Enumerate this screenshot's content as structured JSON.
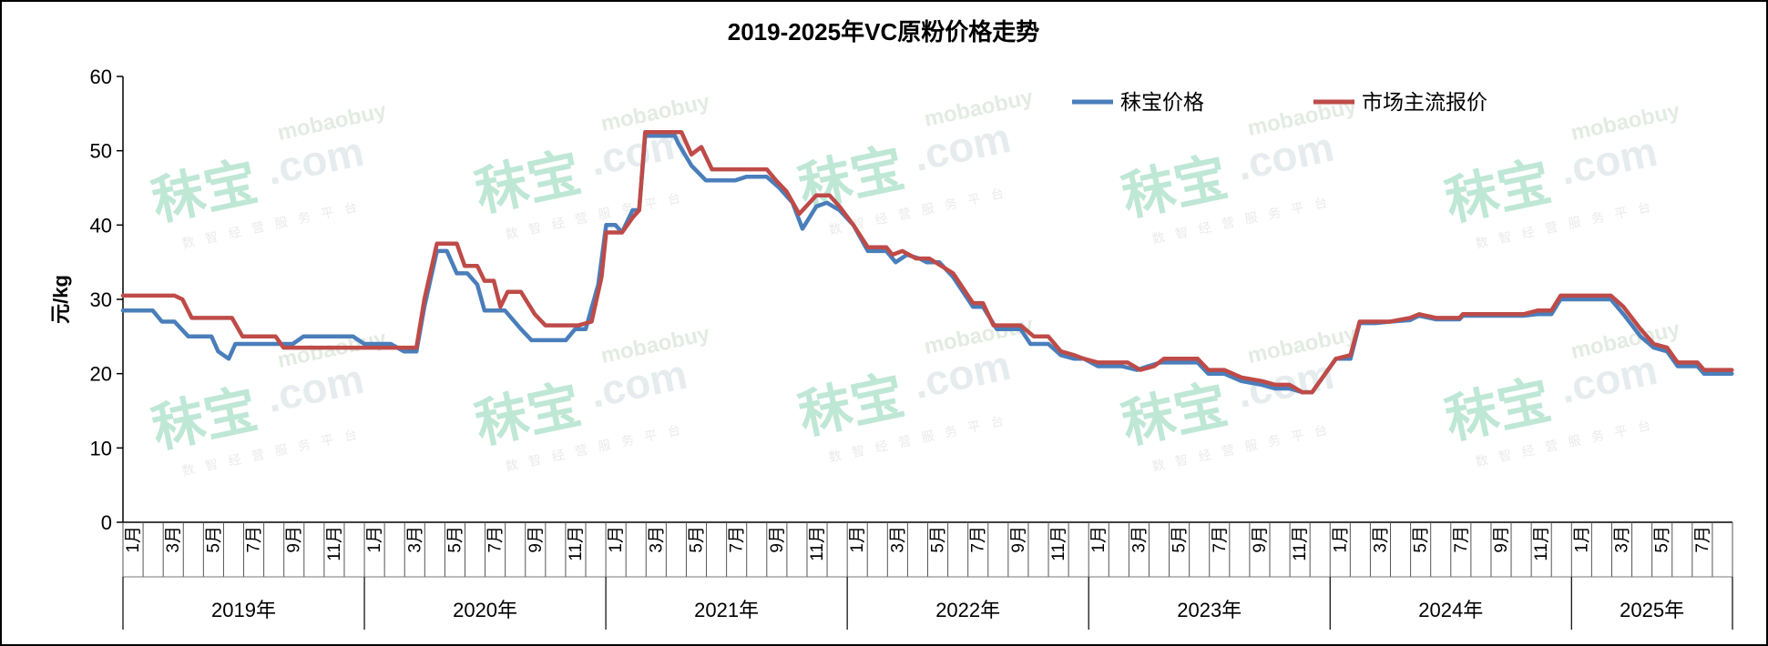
{
  "chart_data": {
    "type": "line",
    "title": "2019-2025年VC原粉价格走势",
    "ylabel": "元/kg",
    "xlabel": "",
    "ylim": [
      0,
      60
    ],
    "yticks": [
      "0",
      "10",
      "20",
      "30",
      "40",
      "50",
      "60"
    ],
    "grid": false,
    "legend_position": "top-right",
    "x_month_labels": [
      "1月",
      "3月",
      "5月",
      "7月",
      "9月",
      "11月"
    ],
    "years": [
      "2019年",
      "2020年",
      "2021年",
      "2022年",
      "2023年",
      "2024年",
      "2025年"
    ],
    "x_start": "2019-01",
    "x_end": "2025-08",
    "series": [
      {
        "name": "秣宝价格",
        "color": "#4a7ebb",
        "points": [
          [
            "2019-01-01",
            28.5
          ],
          [
            "2019-02-15",
            28.5
          ],
          [
            "2019-03-01",
            27
          ],
          [
            "2019-03-20",
            27
          ],
          [
            "2019-04-10",
            25
          ],
          [
            "2019-05-15",
            25
          ],
          [
            "2019-05-25",
            23
          ],
          [
            "2019-06-10",
            22
          ],
          [
            "2019-06-20",
            24
          ],
          [
            "2019-08-20",
            24
          ],
          [
            "2019-09-15",
            24
          ],
          [
            "2019-10-01",
            25
          ],
          [
            "2019-12-15",
            25
          ],
          [
            "2020-01-01",
            24
          ],
          [
            "2020-02-10",
            24
          ],
          [
            "2020-03-01",
            23
          ],
          [
            "2020-03-20",
            23
          ],
          [
            "2020-04-01",
            29
          ],
          [
            "2020-04-20",
            36.5
          ],
          [
            "2020-05-05",
            36.5
          ],
          [
            "2020-05-20",
            33.5
          ],
          [
            "2020-06-05",
            33.5
          ],
          [
            "2020-06-20",
            32
          ],
          [
            "2020-07-01",
            28.5
          ],
          [
            "2020-08-01",
            28.5
          ],
          [
            "2020-08-25",
            26
          ],
          [
            "2020-09-10",
            24.5
          ],
          [
            "2020-11-01",
            24.5
          ],
          [
            "2020-11-15",
            26
          ],
          [
            "2020-12-01",
            26
          ],
          [
            "2020-12-20",
            32
          ],
          [
            "2021-01-01",
            40
          ],
          [
            "2021-01-15",
            40
          ],
          [
            "2021-01-25",
            39
          ],
          [
            "2021-02-10",
            42
          ],
          [
            "2021-02-20",
            42
          ],
          [
            "2021-03-01",
            52
          ],
          [
            "2021-04-15",
            52
          ],
          [
            "2021-04-20",
            51
          ],
          [
            "2021-05-10",
            48
          ],
          [
            "2021-06-01",
            46
          ],
          [
            "2021-07-15",
            46
          ],
          [
            "2021-08-01",
            46.5
          ],
          [
            "2021-09-01",
            46.5
          ],
          [
            "2021-09-20",
            45
          ],
          [
            "2021-10-10",
            43
          ],
          [
            "2021-10-25",
            39.5
          ],
          [
            "2021-11-15",
            42.5
          ],
          [
            "2021-12-01",
            43
          ],
          [
            "2021-12-20",
            42
          ],
          [
            "2022-01-10",
            40
          ],
          [
            "2022-02-01",
            36.5
          ],
          [
            "2022-03-01",
            36.5
          ],
          [
            "2022-03-15",
            35
          ],
          [
            "2022-04-01",
            36
          ],
          [
            "2022-04-20",
            35.5
          ],
          [
            "2022-05-01",
            35
          ],
          [
            "2022-05-20",
            35
          ],
          [
            "2022-06-10",
            33
          ],
          [
            "2022-07-10",
            29
          ],
          [
            "2022-07-25",
            29
          ],
          [
            "2022-08-15",
            26
          ],
          [
            "2022-09-20",
            26
          ],
          [
            "2022-10-05",
            24
          ],
          [
            "2022-11-01",
            24
          ],
          [
            "2022-11-20",
            22.5
          ],
          [
            "2022-12-10",
            22
          ],
          [
            "2022-12-25",
            22
          ],
          [
            "2023-01-15",
            21
          ],
          [
            "2023-02-20",
            21
          ],
          [
            "2023-03-15",
            20.5
          ],
          [
            "2023-04-01",
            21
          ],
          [
            "2023-04-20",
            21.5
          ],
          [
            "2023-06-15",
            21.5
          ],
          [
            "2023-07-01",
            20
          ],
          [
            "2023-07-25",
            20
          ],
          [
            "2023-08-20",
            19
          ],
          [
            "2023-09-20",
            18.5
          ],
          [
            "2023-10-10",
            18
          ],
          [
            "2023-11-01",
            18
          ],
          [
            "2023-11-20",
            17.5
          ],
          [
            "2023-12-05",
            17.5
          ],
          [
            "2023-12-25",
            20
          ],
          [
            "2024-01-10",
            22
          ],
          [
            "2024-02-01",
            22
          ],
          [
            "2024-02-15",
            26.8
          ],
          [
            "2024-03-10",
            26.8
          ],
          [
            "2024-04-01",
            27
          ],
          [
            "2024-05-01",
            27.2
          ],
          [
            "2024-05-15",
            27.8
          ],
          [
            "2024-06-10",
            27.3
          ],
          [
            "2024-07-15",
            27.3
          ],
          [
            "2024-07-20",
            27.8
          ],
          [
            "2024-10-20",
            27.8
          ],
          [
            "2024-11-10",
            28
          ],
          [
            "2024-12-01",
            28
          ],
          [
            "2024-12-15",
            30
          ],
          [
            "2025-03-01",
            30
          ],
          [
            "2025-03-20",
            28
          ],
          [
            "2025-04-15",
            25
          ],
          [
            "2025-05-05",
            23.5
          ],
          [
            "2025-05-25",
            23
          ],
          [
            "2025-06-10",
            21
          ],
          [
            "2025-07-10",
            21
          ],
          [
            "2025-07-20",
            20
          ],
          [
            "2025-08-31",
            20
          ]
        ]
      },
      {
        "name": "市场主流报价",
        "color": "#be4b48",
        "points": [
          [
            "2019-01-01",
            30.5
          ],
          [
            "2019-03-20",
            30.5
          ],
          [
            "2019-04-01",
            30
          ],
          [
            "2019-04-15",
            27.5
          ],
          [
            "2019-06-15",
            27.5
          ],
          [
            "2019-07-01",
            25
          ],
          [
            "2019-08-20",
            25
          ],
          [
            "2019-09-01",
            23.5
          ],
          [
            "2020-03-20",
            23.5
          ],
          [
            "2020-04-01",
            30
          ],
          [
            "2020-04-20",
            37.5
          ],
          [
            "2020-05-20",
            37.5
          ],
          [
            "2020-06-01",
            34.5
          ],
          [
            "2020-06-20",
            34.5
          ],
          [
            "2020-07-01",
            32.5
          ],
          [
            "2020-07-15",
            32.5
          ],
          [
            "2020-07-25",
            29
          ],
          [
            "2020-08-05",
            31
          ],
          [
            "2020-08-25",
            31
          ],
          [
            "2020-09-15",
            28
          ],
          [
            "2020-10-01",
            26.5
          ],
          [
            "2020-11-20",
            26.5
          ],
          [
            "2020-12-10",
            27
          ],
          [
            "2020-12-25",
            33
          ],
          [
            "2021-01-01",
            39
          ],
          [
            "2021-01-25",
            39
          ],
          [
            "2021-02-10",
            41
          ],
          [
            "2021-02-20",
            42
          ],
          [
            "2021-03-01",
            52.5
          ],
          [
            "2021-04-25",
            52.5
          ],
          [
            "2021-05-10",
            49.5
          ],
          [
            "2021-05-25",
            50.5
          ],
          [
            "2021-06-10",
            47.5
          ],
          [
            "2021-09-01",
            47.5
          ],
          [
            "2021-09-15",
            46
          ],
          [
            "2021-10-01",
            44.5
          ],
          [
            "2021-10-20",
            41.5
          ],
          [
            "2021-11-15",
            44
          ],
          [
            "2021-12-05",
            44
          ],
          [
            "2021-12-20",
            42.5
          ],
          [
            "2022-01-10",
            40
          ],
          [
            "2022-02-01",
            37
          ],
          [
            "2022-03-01",
            37
          ],
          [
            "2022-03-10",
            36
          ],
          [
            "2022-03-25",
            36.5
          ],
          [
            "2022-04-15",
            35.5
          ],
          [
            "2022-05-05",
            35.5
          ],
          [
            "2022-06-10",
            33.5
          ],
          [
            "2022-07-10",
            29.5
          ],
          [
            "2022-07-25",
            29.5
          ],
          [
            "2022-08-10",
            26.5
          ],
          [
            "2022-09-20",
            26.5
          ],
          [
            "2022-10-10",
            25
          ],
          [
            "2022-11-01",
            25
          ],
          [
            "2022-11-20",
            23
          ],
          [
            "2022-12-10",
            22.5
          ],
          [
            "2022-12-25",
            22
          ],
          [
            "2023-01-15",
            21.5
          ],
          [
            "2023-03-01",
            21.5
          ],
          [
            "2023-03-20",
            20.5
          ],
          [
            "2023-04-10",
            21
          ],
          [
            "2023-04-25",
            22
          ],
          [
            "2023-06-15",
            22
          ],
          [
            "2023-07-01",
            20.5
          ],
          [
            "2023-07-25",
            20.5
          ],
          [
            "2023-08-20",
            19.5
          ],
          [
            "2023-09-20",
            19
          ],
          [
            "2023-10-10",
            18.5
          ],
          [
            "2023-11-01",
            18.5
          ],
          [
            "2023-11-20",
            17.5
          ],
          [
            "2023-12-05",
            17.5
          ],
          [
            "2023-12-25",
            20
          ],
          [
            "2024-01-10",
            22
          ],
          [
            "2024-02-01",
            22.5
          ],
          [
            "2024-02-15",
            27
          ],
          [
            "2024-03-10",
            27
          ],
          [
            "2024-04-01",
            27
          ],
          [
            "2024-05-01",
            27.5
          ],
          [
            "2024-05-15",
            28
          ],
          [
            "2024-06-10",
            27.5
          ],
          [
            "2024-07-15",
            27.5
          ],
          [
            "2024-07-20",
            28
          ],
          [
            "2024-10-20",
            28
          ],
          [
            "2024-11-10",
            28.5
          ],
          [
            "2024-12-01",
            28.5
          ],
          [
            "2024-12-15",
            30.5
          ],
          [
            "2025-03-01",
            30.5
          ],
          [
            "2025-03-20",
            29
          ],
          [
            "2025-04-15",
            26
          ],
          [
            "2025-05-05",
            24
          ],
          [
            "2025-05-25",
            23.5
          ],
          [
            "2025-06-10",
            21.5
          ],
          [
            "2025-07-10",
            21.5
          ],
          [
            "2025-07-20",
            20.5
          ],
          [
            "2025-08-31",
            20.5
          ]
        ]
      }
    ]
  },
  "watermark": {
    "logo": "秣宝",
    "domain": ".com",
    "small": "mobaobuy",
    "tagline": "数智经营服务平台"
  }
}
